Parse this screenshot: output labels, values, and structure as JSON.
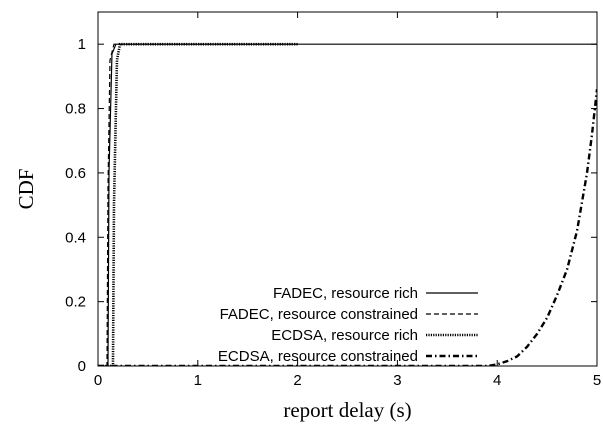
{
  "chart_data": {
    "type": "line",
    "xlabel": "report delay (s)",
    "ylabel": "CDF",
    "xlim": [
      0,
      5
    ],
    "ylim": [
      0,
      1.1
    ],
    "xticks": [
      0,
      1,
      2,
      3,
      4,
      5
    ],
    "yticks": [
      0,
      0.2,
      0.4,
      0.6,
      0.8,
      1
    ],
    "grid": false,
    "legend_position": "bottom-right",
    "series": [
      {
        "name": "FADEC, resource rich",
        "style": "solid",
        "x": [
          0,
          0.1,
          0.11,
          0.14,
          0.18,
          5
        ],
        "y": [
          0,
          0,
          0.6,
          0.97,
          1,
          1
        ]
      },
      {
        "name": "FADEC, resource constrained",
        "style": "dashed",
        "x": [
          0,
          0.09,
          0.1,
          0.12,
          0.16,
          2
        ],
        "y": [
          0,
          0,
          0.55,
          0.95,
          1,
          1
        ]
      },
      {
        "name": "ECDSA, resource rich",
        "style": "dotted",
        "x": [
          0,
          0.15,
          0.16,
          0.19,
          0.22,
          2
        ],
        "y": [
          0,
          0,
          0.5,
          0.95,
          1,
          1
        ]
      },
      {
        "name": "ECDSA, resource constrained",
        "style": "dashdot",
        "x": [
          0,
          3.9,
          4.0,
          4.1,
          4.2,
          4.3,
          4.4,
          4.5,
          4.6,
          4.7,
          4.8,
          4.9,
          4.95,
          5.0
        ],
        "y": [
          0,
          0,
          0.005,
          0.015,
          0.03,
          0.06,
          0.1,
          0.15,
          0.22,
          0.3,
          0.42,
          0.6,
          0.72,
          0.86
        ]
      }
    ]
  }
}
